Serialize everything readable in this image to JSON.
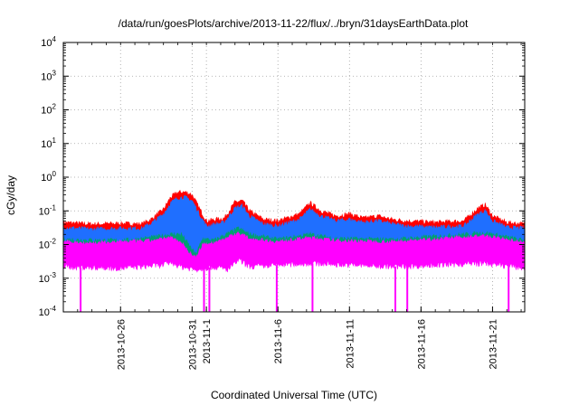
{
  "chart_data": {
    "type": "line",
    "title": "/data/run/goesPlots/archive/2013-11-22/flux/../bryn/31daysEarthData.plot",
    "xlabel": "Coordinated Universal Time (UTC)",
    "ylabel": "cGy/day",
    "yscale": "log",
    "ylim": [
      0.0001,
      10000
    ],
    "xlim": [
      "2013-10-22T00:00",
      "2013-11-23T06:00"
    ],
    "y_ticks": [
      {
        "base": "10",
        "exp": "-4",
        "value": 0.0001
      },
      {
        "base": "10",
        "exp": "-3",
        "value": 0.001
      },
      {
        "base": "10",
        "exp": "-2",
        "value": 0.01
      },
      {
        "base": "10",
        "exp": "-1",
        "value": 0.1
      },
      {
        "base": "10",
        "exp": "0",
        "value": 1
      },
      {
        "base": "10",
        "exp": "1",
        "value": 10
      },
      {
        "base": "10",
        "exp": "2",
        "value": 100
      },
      {
        "base": "10",
        "exp": "3",
        "value": 1000
      },
      {
        "base": "10",
        "exp": "4",
        "value": 10000
      }
    ],
    "x_ticks": [
      "2013-10-26",
      "2013-10-31",
      "2013-11-1",
      "2013-11-6",
      "2013-11-11",
      "2013-11-16",
      "2013-11-21"
    ],
    "x_tick_dates": [
      "2013-10-26",
      "2013-10-31",
      "2013-11-01",
      "2013-11-06",
      "2013-11-11",
      "2013-11-16",
      "2013-11-21"
    ],
    "grid": true,
    "legend": "none",
    "series": [
      {
        "color": "#ff0000",
        "points": [
          [
            "2013-10-22T00:00",
            0.045
          ],
          [
            "2013-10-24T00:00",
            0.04
          ],
          [
            "2013-10-26T00:00",
            0.042
          ],
          [
            "2013-10-27T12:00",
            0.04
          ],
          [
            "2013-10-28T06:00",
            0.06
          ],
          [
            "2013-10-29T00:00",
            0.11
          ],
          [
            "2013-10-29T12:00",
            0.25
          ],
          [
            "2013-10-30T00:00",
            0.35
          ],
          [
            "2013-10-30T12:00",
            0.36
          ],
          [
            "2013-10-31T00:00",
            0.3
          ],
          [
            "2013-10-31T12:00",
            0.12
          ],
          [
            "2013-11-01T00:00",
            0.05
          ],
          [
            "2013-11-02T06:00",
            0.06
          ],
          [
            "2013-11-03T00:00",
            0.18
          ],
          [
            "2013-11-03T12:00",
            0.2
          ],
          [
            "2013-11-04T00:00",
            0.1
          ],
          [
            "2013-11-05T00:00",
            0.055
          ],
          [
            "2013-11-06T00:00",
            0.05
          ],
          [
            "2013-11-07T12:00",
            0.08
          ],
          [
            "2013-11-08T06:00",
            0.17
          ],
          [
            "2013-11-09T00:00",
            0.1
          ],
          [
            "2013-11-10T00:00",
            0.07
          ],
          [
            "2013-11-11T00:00",
            0.08
          ],
          [
            "2013-11-12T00:00",
            0.06
          ],
          [
            "2013-11-13T00:00",
            0.07
          ],
          [
            "2013-11-14T00:00",
            0.055
          ],
          [
            "2013-11-15T00:00",
            0.05
          ],
          [
            "2013-11-17T00:00",
            0.045
          ],
          [
            "2013-11-19T00:00",
            0.05
          ],
          [
            "2013-11-20T00:00",
            0.12
          ],
          [
            "2013-11-20T12:00",
            0.15
          ],
          [
            "2013-11-21T00:00",
            0.07
          ],
          [
            "2013-11-22T00:00",
            0.045
          ],
          [
            "2013-11-23T06:00",
            0.04
          ]
        ]
      },
      {
        "color": "#1f6fff",
        "points": [
          [
            "2013-10-22T00:00",
            0.032
          ],
          [
            "2013-10-24T00:00",
            0.028
          ],
          [
            "2013-10-26T00:00",
            0.03
          ],
          [
            "2013-10-27T12:00",
            0.03
          ],
          [
            "2013-10-28T06:00",
            0.045
          ],
          [
            "2013-10-29T00:00",
            0.08
          ],
          [
            "2013-10-29T12:00",
            0.17
          ],
          [
            "2013-10-30T00:00",
            0.24
          ],
          [
            "2013-10-30T12:00",
            0.25
          ],
          [
            "2013-10-31T00:00",
            0.2
          ],
          [
            "2013-10-31T12:00",
            0.08
          ],
          [
            "2013-11-01T00:00",
            0.035
          ],
          [
            "2013-11-02T06:00",
            0.045
          ],
          [
            "2013-11-03T00:00",
            0.12
          ],
          [
            "2013-11-03T12:00",
            0.14
          ],
          [
            "2013-11-04T00:00",
            0.07
          ],
          [
            "2013-11-05T00:00",
            0.04
          ],
          [
            "2013-11-06T00:00",
            0.035
          ],
          [
            "2013-11-07T12:00",
            0.055
          ],
          [
            "2013-11-08T06:00",
            0.11
          ],
          [
            "2013-11-09T00:00",
            0.07
          ],
          [
            "2013-11-10T00:00",
            0.05
          ],
          [
            "2013-11-11T00:00",
            0.055
          ],
          [
            "2013-11-12T00:00",
            0.045
          ],
          [
            "2013-11-13T00:00",
            0.05
          ],
          [
            "2013-11-14T00:00",
            0.04
          ],
          [
            "2013-11-15T00:00",
            0.035
          ],
          [
            "2013-11-17T00:00",
            0.032
          ],
          [
            "2013-11-19T00:00",
            0.035
          ],
          [
            "2013-11-20T00:00",
            0.08
          ],
          [
            "2013-11-20T12:00",
            0.1
          ],
          [
            "2013-11-21T00:00",
            0.05
          ],
          [
            "2013-11-22T00:00",
            0.032
          ],
          [
            "2013-11-23T06:00",
            0.03
          ]
        ]
      },
      {
        "color": "#00a070",
        "points": [
          [
            "2013-10-22T00:00",
            0.014
          ],
          [
            "2013-10-26T00:00",
            0.013
          ],
          [
            "2013-10-28T06:00",
            0.016
          ],
          [
            "2013-10-29T12:00",
            0.02
          ],
          [
            "2013-10-30T06:00",
            0.02
          ],
          [
            "2013-10-30T18:00",
            0.01
          ],
          [
            "2013-10-31T06:00",
            0.005
          ],
          [
            "2013-10-31T18:00",
            0.015
          ],
          [
            "2013-11-01T12:00",
            0.013
          ],
          [
            "2013-11-03T06:00",
            0.03
          ],
          [
            "2013-11-04T00:00",
            0.02
          ],
          [
            "2013-11-06T00:00",
            0.014
          ],
          [
            "2013-11-08T06:00",
            0.02
          ],
          [
            "2013-11-10T00:00",
            0.015
          ],
          [
            "2013-11-14T00:00",
            0.014
          ],
          [
            "2013-11-20T12:00",
            0.022
          ],
          [
            "2013-11-23T06:00",
            0.013
          ]
        ]
      },
      {
        "color": "#ff00ff",
        "points": [
          [
            "2013-10-22T00:00",
            0.012
          ],
          [
            "2013-10-24T00:00",
            0.011
          ],
          [
            "2013-10-26T00:00",
            0.012
          ],
          [
            "2013-10-28T06:00",
            0.013
          ],
          [
            "2013-10-29T12:00",
            0.016
          ],
          [
            "2013-10-30T06:00",
            0.012
          ],
          [
            "2013-10-30T18:00",
            0.006
          ],
          [
            "2013-10-31T06:00",
            0.004
          ],
          [
            "2013-10-31T18:00",
            0.01
          ],
          [
            "2013-11-01T12:00",
            0.011
          ],
          [
            "2013-11-03T06:00",
            0.022
          ],
          [
            "2013-11-04T00:00",
            0.015
          ],
          [
            "2013-11-06T00:00",
            0.012
          ],
          [
            "2013-11-08T06:00",
            0.016
          ],
          [
            "2013-11-10T00:00",
            0.013
          ],
          [
            "2013-11-14T00:00",
            0.012
          ],
          [
            "2013-11-20T12:00",
            0.018
          ],
          [
            "2013-11-23T06:00",
            0.011
          ]
        ],
        "lower_points": [
          [
            "2013-10-22T00:00",
            0.0022
          ],
          [
            "2013-10-26T00:00",
            0.002
          ],
          [
            "2013-10-29T00:00",
            0.0025
          ],
          [
            "2013-10-29T12:00",
            0.003
          ],
          [
            "2013-10-30T06:00",
            0.0022
          ],
          [
            "2013-10-31T06:00",
            0.0018
          ],
          [
            "2013-11-01T12:00",
            0.0022
          ],
          [
            "2013-11-02T12:00",
            0.0018
          ],
          [
            "2013-11-03T06:00",
            0.0035
          ],
          [
            "2013-11-04T00:00",
            0.0022
          ],
          [
            "2013-11-08T06:00",
            0.0028
          ],
          [
            "2013-11-14T00:00",
            0.0022
          ],
          [
            "2013-11-20T12:00",
            0.0028
          ],
          [
            "2013-11-23T06:00",
            0.002
          ]
        ],
        "dropouts": [
          "2013-10-23T05:00",
          "2013-10-31T20:00",
          "2013-11-01T05:00",
          "2013-11-05T22:00",
          "2013-11-08T10:00",
          "2013-11-14T05:00",
          "2013-11-15T01:00",
          "2013-11-22T03:00"
        ]
      }
    ]
  }
}
